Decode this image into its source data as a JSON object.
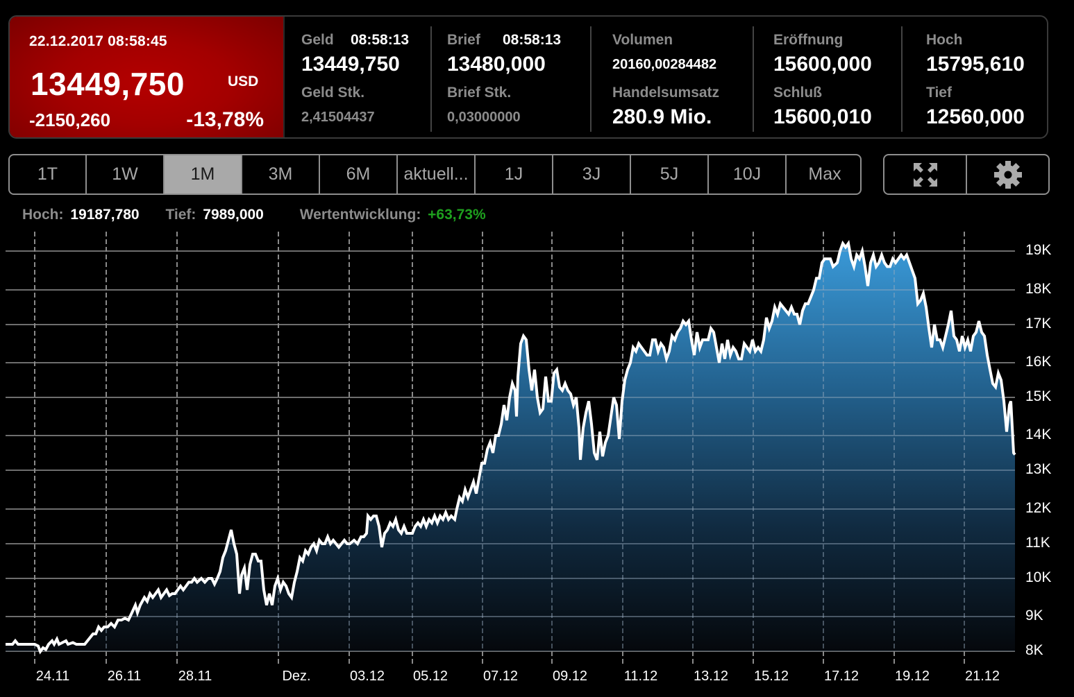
{
  "quote": {
    "timestamp": "22.12.2017 08:58:45",
    "price": "13449,750",
    "currency": "USD",
    "change_abs": "-2150,260",
    "change_pct": "-13,78%",
    "colors": {
      "negative_bg": "#a30000",
      "positive_text": "#1ea01e"
    }
  },
  "fields": {
    "geld": {
      "label": "Geld",
      "time": "08:58:13",
      "value": "13449,750",
      "stk_label": "Geld Stk.",
      "stk_value": "2,41504437"
    },
    "brief": {
      "label": "Brief",
      "time": "08:58:13",
      "value": "13480,000",
      "stk_label": "Brief Stk.",
      "stk_value": "0,03000000"
    },
    "volumen": {
      "label": "Volumen",
      "value": "20160,00284482"
    },
    "handelsumsatz": {
      "label": "Handelsumsatz",
      "value": "280.9 Mio."
    },
    "eroeffnung": {
      "label": "Eröffnung",
      "value": "15600,000"
    },
    "schluss": {
      "label": "Schluß",
      "value": "15600,010"
    },
    "hoch": {
      "label": "Hoch",
      "value": "15795,610"
    },
    "tief": {
      "label": "Tief",
      "value": "12560,000"
    }
  },
  "range_tabs": [
    {
      "label": "1T",
      "active": false
    },
    {
      "label": "1W",
      "active": false
    },
    {
      "label": "1M",
      "active": true
    },
    {
      "label": "3M",
      "active": false
    },
    {
      "label": "6M",
      "active": false
    },
    {
      "label": "aktuell...",
      "active": false
    },
    {
      "label": "1J",
      "active": false
    },
    {
      "label": "3J",
      "active": false
    },
    {
      "label": "5J",
      "active": false
    },
    {
      "label": "10J",
      "active": false
    },
    {
      "label": "Max",
      "active": false
    }
  ],
  "tools": [
    {
      "icon": "fullscreen-arrows-icon"
    },
    {
      "icon": "gear-icon"
    }
  ],
  "stats": {
    "hoch_label": "Hoch:",
    "hoch_value": "19187,780",
    "tief_label": "Tief:",
    "tief_value": "7989,000",
    "wert_label": "Wertentwicklung:",
    "wert_value": "+63,73%"
  },
  "chart_data": {
    "type": "area",
    "title": "",
    "xlabel": "",
    "ylabel": "",
    "currency": "USD",
    "period": "1M",
    "ylim": [
      7800,
      19500
    ],
    "grid": {
      "horizontal": "solid",
      "vertical": "dashed"
    },
    "y_ticks": [
      {
        "label": "19K",
        "value": 19000
      },
      {
        "label": "18K",
        "value": 18000
      },
      {
        "label": "17K",
        "value": 17000
      },
      {
        "label": "16K",
        "value": 16000
      },
      {
        "label": "15K",
        "value": 15000
      },
      {
        "label": "14K",
        "value": 14000
      },
      {
        "label": "13K",
        "value": 13000
      },
      {
        "label": "12K",
        "value": 12000
      },
      {
        "label": "11K",
        "value": 11000
      },
      {
        "label": "10K",
        "value": 10000
      },
      {
        "label": "9K",
        "value": 9000
      },
      {
        "label": "8K",
        "value": 8000
      }
    ],
    "x_ticks": [
      "24.11",
      "26.11",
      "28.11",
      "Dez.",
      "03.12",
      "05.12",
      "07.12",
      "09.12",
      "11.12",
      "13.12",
      "15.12",
      "17.12",
      "19.12",
      "21.12"
    ],
    "x": [
      "23.11",
      "24.11",
      "25.11",
      "26.11",
      "27.11",
      "28.11",
      "29.11",
      "30.11",
      "01.12",
      "02.12",
      "03.12",
      "04.12",
      "05.12",
      "06.12",
      "07.12",
      "08.12",
      "09.12",
      "10.12",
      "11.12",
      "12.12",
      "13.12",
      "14.12",
      "15.12",
      "16.12",
      "17.12",
      "18.12",
      "19.12",
      "20.12",
      "21.12",
      "22.12"
    ],
    "values": [
      8200,
      8150,
      8300,
      8800,
      9500,
      9700,
      10000,
      9900,
      10900,
      11000,
      11300,
      11200,
      11500,
      11700,
      13500,
      16500,
      15000,
      13300,
      16000,
      16400,
      16800,
      16100,
      16500,
      17800,
      19200,
      18700,
      18600,
      16600,
      16800,
      13450
    ],
    "series_style": {
      "line": "#ffffff",
      "fill_top": "#3a9ad9",
      "fill_bottom": "#05080c"
    },
    "high": 19187.78,
    "low": 7989.0,
    "performance_pct": 63.73
  }
}
